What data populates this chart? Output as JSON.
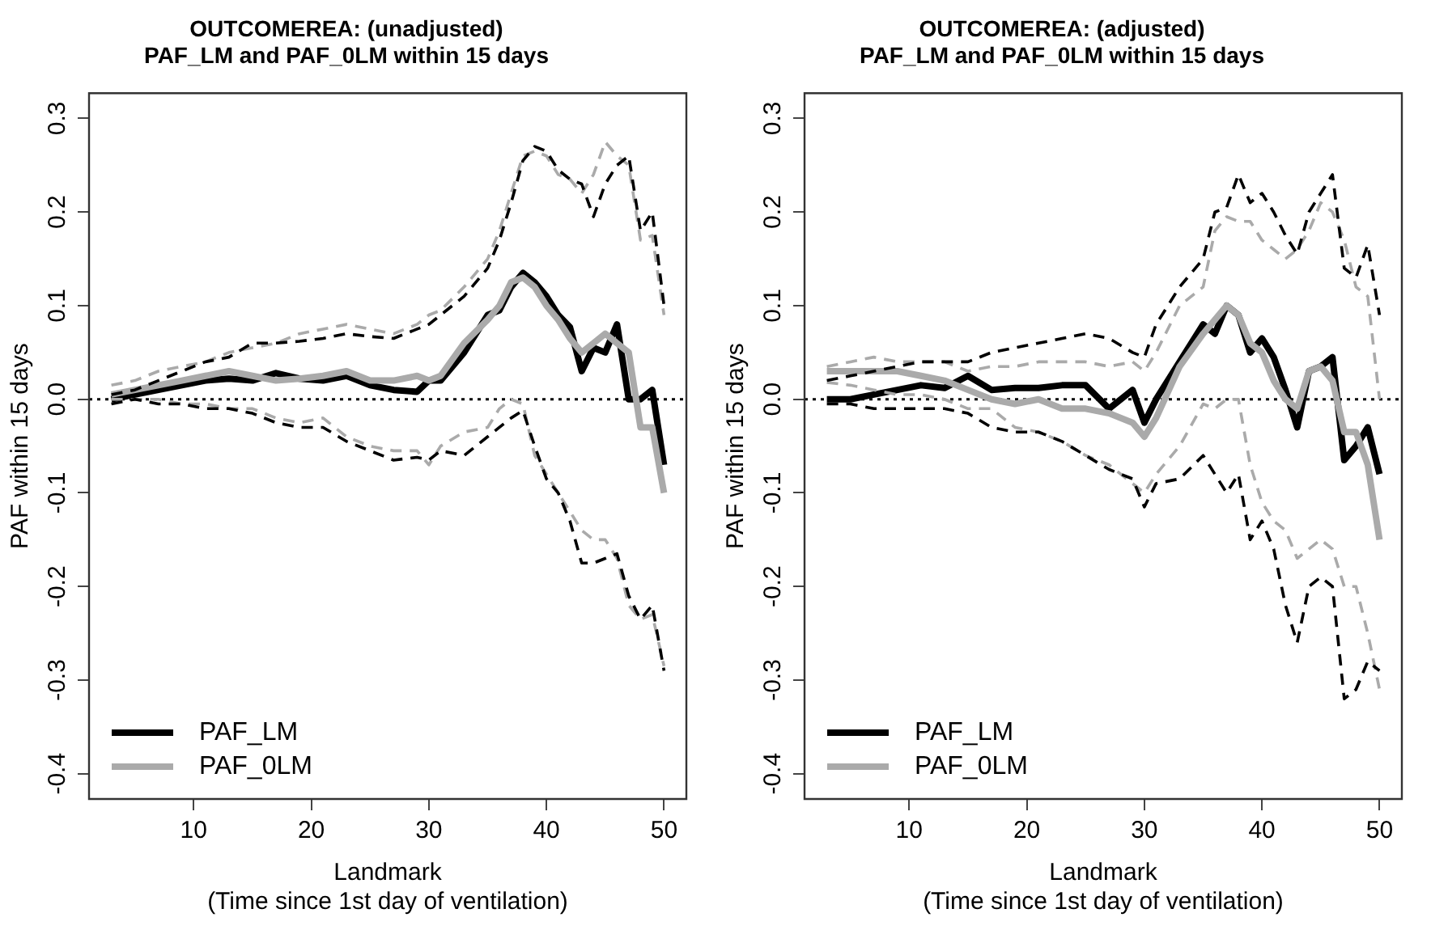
{
  "chart_data": [
    {
      "type": "line",
      "title": "OUTCOMEREA: (unadjusted)\nPAF_LM and PAF_0LM within 15 days",
      "xlabel": "Landmark\n(Time since 1st day of ventilation)",
      "ylabel": "PAF within 15 days",
      "x": [
        3,
        5,
        7,
        9,
        11,
        13,
        15,
        17,
        19,
        21,
        23,
        25,
        27,
        29,
        30,
        31,
        33,
        35,
        36,
        37,
        38,
        39,
        40,
        41,
        42,
        43,
        44,
        45,
        46,
        47,
        48,
        49,
        50
      ],
      "xlim": [
        1.1,
        51.9
      ],
      "xticks": [
        10,
        20,
        30,
        40,
        50
      ],
      "ylim": [
        -0.427,
        0.327
      ],
      "yticks": [
        -0.4,
        -0.3,
        -0.2,
        -0.1,
        {
          "value": 0,
          "label": "0.0"
        },
        0.1,
        0.2,
        0.3
      ],
      "grid": false,
      "legend": "bottom left",
      "marker": "none",
      "ref_lines": [
        {
          "axis": "y",
          "value": 0,
          "line_style": "dotted",
          "color": "#000000"
        }
      ],
      "series": [
        {
          "color": "#000000",
          "line_style": "dashed",
          "values": [
            0.005,
            0.01,
            0.02,
            0.03,
            0.04,
            0.045,
            0.06,
            0.06,
            0.062,
            0.065,
            0.07,
            0.067,
            0.065,
            0.075,
            0.08,
            0.09,
            0.11,
            0.14,
            0.17,
            0.21,
            0.255,
            0.27,
            0.265,
            0.245,
            0.235,
            0.23,
            0.195,
            0.23,
            0.25,
            0.26,
            0.18,
            0.2,
            0.1
          ]
        },
        {
          "color": "#aaaaaa",
          "line_style": "dashed",
          "values": [
            0.015,
            0.02,
            0.03,
            0.035,
            0.04,
            0.05,
            0.055,
            0.06,
            0.07,
            0.075,
            0.08,
            0.075,
            0.07,
            0.08,
            0.09,
            0.095,
            0.12,
            0.15,
            0.18,
            0.22,
            0.26,
            0.265,
            0.26,
            0.24,
            0.235,
            0.22,
            0.24,
            0.275,
            0.26,
            0.25,
            0.17,
            0.175,
            0.09
          ]
        },
        {
          "color": "#000000",
          "line_style": "dashed",
          "values": [
            -0.005,
            0.0,
            -0.005,
            -0.005,
            -0.01,
            -0.01,
            -0.015,
            -0.025,
            -0.03,
            -0.03,
            -0.045,
            -0.055,
            -0.065,
            -0.062,
            -0.065,
            -0.055,
            -0.06,
            -0.04,
            -0.03,
            -0.02,
            -0.012,
            -0.05,
            -0.085,
            -0.1,
            -0.13,
            -0.175,
            -0.175,
            -0.17,
            -0.165,
            -0.21,
            -0.235,
            -0.22,
            -0.29
          ]
        },
        {
          "color": "#aaaaaa",
          "line_style": "dashed",
          "values": [
            0.0,
            0.0,
            0.0,
            -0.005,
            -0.005,
            -0.01,
            -0.01,
            -0.02,
            -0.025,
            -0.02,
            -0.04,
            -0.05,
            -0.055,
            -0.055,
            -0.07,
            -0.05,
            -0.035,
            -0.03,
            -0.01,
            0.0,
            -0.005,
            -0.06,
            -0.08,
            -0.1,
            -0.12,
            -0.14,
            -0.15,
            -0.15,
            -0.17,
            -0.22,
            -0.235,
            -0.23,
            -0.285
          ]
        },
        {
          "name": "PAF_0LM",
          "color": "#aaaaaa",
          "line_style": "solid",
          "values": [
            0.005,
            0.01,
            0.015,
            0.02,
            0.025,
            0.03,
            0.025,
            0.02,
            0.022,
            0.025,
            0.03,
            0.02,
            0.02,
            0.025,
            0.02,
            0.025,
            0.06,
            0.085,
            0.1,
            0.125,
            0.13,
            0.12,
            0.1,
            0.085,
            0.065,
            0.05,
            0.06,
            0.07,
            0.06,
            0.05,
            -0.03,
            -0.03,
            -0.1
          ]
        },
        {
          "name": "PAF_LM",
          "color": "#000000",
          "line_style": "solid",
          "values": [
            0.0,
            0.005,
            0.01,
            0.015,
            0.02,
            0.022,
            0.02,
            0.028,
            0.022,
            0.02,
            0.025,
            0.015,
            0.01,
            0.008,
            0.02,
            0.02,
            0.05,
            0.09,
            0.095,
            0.12,
            0.135,
            0.125,
            0.11,
            0.09,
            0.077,
            0.03,
            0.055,
            0.05,
            0.08,
            0.0,
            0.0,
            0.01,
            -0.07
          ]
        }
      ]
    },
    {
      "type": "line",
      "title": "OUTCOMEREA: (adjusted)\nPAF_LM and PAF_0LM within 15 days",
      "xlabel": "Landmark\n(Time since 1st day of ventilation)",
      "ylabel": "PAF within 15 days",
      "x": [
        3,
        5,
        7,
        9,
        11,
        13,
        15,
        17,
        19,
        21,
        23,
        25,
        27,
        29,
        30,
        31,
        33,
        35,
        36,
        37,
        38,
        39,
        40,
        41,
        42,
        43,
        44,
        45,
        46,
        47,
        48,
        49,
        50
      ],
      "xlim": [
        1.1,
        51.9
      ],
      "xticks": [
        10,
        20,
        30,
        40,
        50
      ],
      "ylim": [
        -0.427,
        0.327
      ],
      "yticks": [
        -0.4,
        -0.3,
        -0.2,
        -0.1,
        {
          "value": 0,
          "label": "0.0"
        },
        0.1,
        0.2,
        0.3
      ],
      "grid": false,
      "legend": "bottom left",
      "marker": "none",
      "ref_lines": [
        {
          "axis": "y",
          "value": 0,
          "line_style": "dotted",
          "color": "#000000"
        }
      ],
      "series": [
        {
          "color": "#000000",
          "line_style": "dashed",
          "values": [
            0.02,
            0.025,
            0.03,
            0.035,
            0.04,
            0.04,
            0.04,
            0.05,
            0.055,
            0.06,
            0.065,
            0.07,
            0.065,
            0.05,
            0.045,
            0.08,
            0.12,
            0.15,
            0.2,
            0.205,
            0.24,
            0.21,
            0.22,
            0.2,
            0.175,
            0.155,
            0.2,
            0.22,
            0.24,
            0.14,
            0.13,
            0.165,
            0.09
          ]
        },
        {
          "color": "#aaaaaa",
          "line_style": "dashed",
          "values": [
            0.035,
            0.04,
            0.045,
            0.04,
            0.04,
            0.04,
            0.03,
            0.035,
            0.035,
            0.04,
            0.04,
            0.04,
            0.035,
            0.04,
            0.03,
            0.05,
            0.1,
            0.12,
            0.18,
            0.195,
            0.19,
            0.19,
            0.17,
            0.16,
            0.15,
            0.16,
            0.18,
            0.21,
            0.2,
            0.17,
            0.12,
            0.11,
            0.0
          ]
        },
        {
          "color": "#000000",
          "line_style": "dashed",
          "values": [
            -0.005,
            -0.005,
            -0.01,
            -0.01,
            -0.01,
            -0.01,
            -0.015,
            -0.03,
            -0.035,
            -0.035,
            -0.045,
            -0.06,
            -0.075,
            -0.085,
            -0.115,
            -0.09,
            -0.085,
            -0.06,
            -0.08,
            -0.1,
            -0.08,
            -0.15,
            -0.13,
            -0.16,
            -0.22,
            -0.26,
            -0.2,
            -0.19,
            -0.2,
            -0.32,
            -0.31,
            -0.28,
            -0.29
          ]
        },
        {
          "color": "#aaaaaa",
          "line_style": "dashed",
          "values": [
            0.018,
            0.015,
            0.01,
            0.005,
            0.005,
            0.0,
            -0.01,
            -0.01,
            -0.03,
            -0.035,
            -0.045,
            -0.06,
            -0.07,
            -0.09,
            -0.1,
            -0.08,
            -0.05,
            -0.005,
            -0.01,
            0.0,
            0.0,
            -0.07,
            -0.11,
            -0.13,
            -0.14,
            -0.17,
            -0.16,
            -0.15,
            -0.16,
            -0.2,
            -0.2,
            -0.25,
            -0.31
          ]
        },
        {
          "name": "PAF_0LM",
          "color": "#aaaaaa",
          "line_style": "solid",
          "values": [
            0.03,
            0.03,
            0.03,
            0.03,
            0.025,
            0.02,
            0.01,
            0.0,
            -0.005,
            0.0,
            -0.01,
            -0.01,
            -0.015,
            -0.025,
            -0.04,
            -0.02,
            0.035,
            0.07,
            0.085,
            0.1,
            0.09,
            0.06,
            0.05,
            0.02,
            0.0,
            -0.01,
            0.03,
            0.035,
            0.02,
            -0.035,
            -0.035,
            -0.07,
            -0.15
          ]
        },
        {
          "name": "PAF_LM",
          "color": "#000000",
          "line_style": "solid",
          "values": [
            0.0,
            0.0,
            0.005,
            0.01,
            0.015,
            0.012,
            0.025,
            0.01,
            0.012,
            0.012,
            0.015,
            0.015,
            -0.01,
            0.01,
            -0.025,
            0.0,
            0.04,
            0.08,
            0.07,
            0.1,
            0.09,
            0.05,
            0.065,
            0.045,
            0.01,
            -0.03,
            0.03,
            0.035,
            0.045,
            -0.065,
            -0.05,
            -0.03,
            -0.08
          ]
        }
      ]
    }
  ]
}
